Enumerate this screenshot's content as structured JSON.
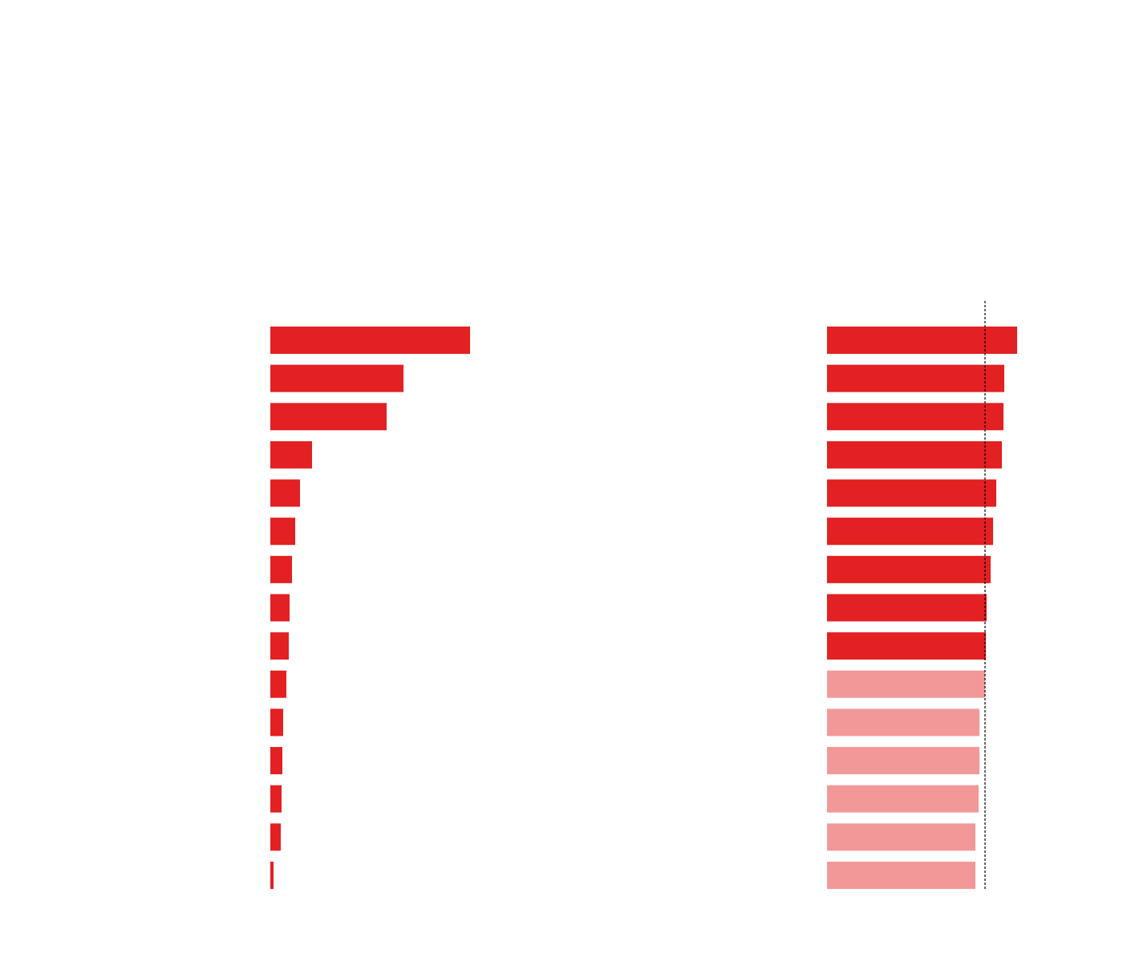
{
  "chart_data": [
    {
      "type": "bar",
      "orientation": "horizontal",
      "categories": [
        null,
        null,
        null,
        null,
        null,
        null,
        null,
        null,
        null,
        null,
        null,
        null,
        null,
        null,
        null
      ],
      "values": [
        249,
        166,
        145,
        52,
        37,
        31,
        27,
        24,
        23,
        20,
        16,
        15,
        14,
        13,
        4
      ],
      "color": "#e32022",
      "xlim": [
        0,
        350
      ]
    },
    {
      "type": "bar",
      "orientation": "horizontal",
      "categories": [
        null,
        null,
        null,
        null,
        null,
        null,
        null,
        null,
        null,
        null,
        null,
        null,
        null,
        null,
        null
      ],
      "values": [
        237,
        221,
        220,
        218,
        211,
        207,
        204,
        199,
        198,
        197,
        190,
        190,
        189,
        185,
        185
      ],
      "colors": [
        "#e32022",
        "#e32022",
        "#e32022",
        "#e32022",
        "#e32022",
        "#e32022",
        "#e32022",
        "#e32022",
        "#e32022",
        "#f29898",
        "#f29898",
        "#f29898",
        "#f29898",
        "#f29898",
        "#f29898"
      ],
      "reference_line": 197,
      "xlim": [
        0,
        300
      ]
    }
  ]
}
